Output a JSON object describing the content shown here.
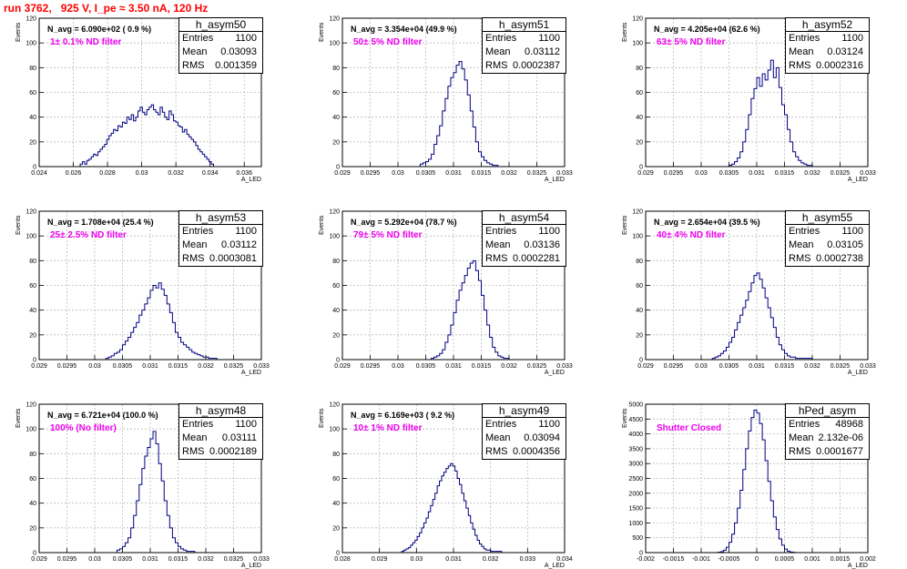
{
  "title": "run 3762,   925 V, I_pe ≈ 3.50 nA, 120 Hz",
  "ylabel": "Events",
  "xlabel": "A_LED",
  "colors": {
    "histogram": "#000080",
    "grid": "#bbbbbb",
    "title": "#ff0000",
    "filter_label": "#ee00ee"
  },
  "chart_data": [
    {
      "type": "bar",
      "name": "h_asym50",
      "entries": "1100",
      "mean": "0.03093",
      "rms": "0.001359",
      "navg": "N_avg = 6.090e+02 ( 0.9 %)",
      "filter": "1± 0.1% ND filter",
      "xlim": [
        0.024,
        0.037
      ],
      "ylim": [
        0,
        120
      ],
      "xticks": [
        0.024,
        0.026,
        0.028,
        0.03,
        0.032,
        0.034,
        0.036
      ],
      "xtick_labels": [
        "0.024",
        "0.026",
        "0.028",
        "0.03",
        "0.032",
        "0.034",
        "0.036"
      ],
      "yticks": [
        0,
        20,
        40,
        60,
        80,
        100,
        120
      ],
      "ytick_labels": [
        "0",
        "20",
        "40",
        "60",
        "80",
        "100",
        "120"
      ],
      "bin_edges": [
        0.0264,
        0.0342
      ],
      "counts": [
        2,
        4,
        2,
        5,
        6,
        8,
        10,
        9,
        12,
        14,
        16,
        18,
        22,
        25,
        27,
        30,
        29,
        33,
        32,
        36,
        35,
        40,
        38,
        42,
        37,
        40,
        45,
        48,
        44,
        42,
        46,
        48,
        50,
        46,
        44,
        42,
        48,
        44,
        40,
        38,
        45,
        42,
        37,
        36,
        33,
        32,
        28,
        30,
        26,
        24,
        22,
        20,
        17,
        14,
        12,
        10,
        8,
        6,
        4,
        2
      ]
    },
    {
      "type": "bar",
      "name": "h_asym51",
      "entries": "1100",
      "mean": "0.03112",
      "rms": "0.0002387",
      "navg": "N_avg = 3.354e+04 (49.9 %)",
      "filter": "50± 5% ND filter",
      "xlim": [
        0.029,
        0.033
      ],
      "ylim": [
        0,
        120
      ],
      "xticks": [
        0.029,
        0.0295,
        0.03,
        0.0305,
        0.031,
        0.0315,
        0.032,
        0.0325,
        0.033
      ],
      "xtick_labels": [
        "0.029",
        "0.0295",
        "0.03",
        "0.0305",
        "0.031",
        "0.0315",
        "0.032",
        "0.0325",
        "0.033"
      ],
      "yticks": [
        0,
        20,
        40,
        60,
        80,
        100,
        120
      ],
      "ytick_labels": [
        "0",
        "20",
        "40",
        "60",
        "80",
        "100",
        "120"
      ],
      "bin_edges": [
        0.0304,
        0.0318
      ],
      "counts": [
        2,
        3,
        4,
        6,
        10,
        18,
        25,
        33,
        45,
        55,
        65,
        72,
        76,
        82,
        85,
        79,
        70,
        58,
        45,
        32,
        20,
        12,
        8,
        5,
        3,
        2,
        1,
        1
      ]
    },
    {
      "type": "bar",
      "name": "h_asym52",
      "entries": "1100",
      "mean": "0.03124",
      "rms": "0.0002316",
      "navg": "N_avg = 4.205e+04 (62.6 %)",
      "filter": "63± 5% ND filter",
      "xlim": [
        0.029,
        0.033
      ],
      "ylim": [
        0,
        120
      ],
      "xticks": [
        0.029,
        0.0295,
        0.03,
        0.0305,
        0.031,
        0.0315,
        0.032,
        0.0325,
        0.033
      ],
      "xtick_labels": [
        "0.029",
        "0.0295",
        "0.03",
        "0.0305",
        "0.031",
        "0.0315",
        "0.032",
        "0.0325",
        "0.033"
      ],
      "yticks": [
        0,
        20,
        40,
        60,
        80,
        100,
        120
      ],
      "ytick_labels": [
        "0",
        "20",
        "40",
        "60",
        "80",
        "100",
        "120"
      ],
      "bin_edges": [
        0.0305,
        0.032
      ],
      "counts": [
        1,
        2,
        4,
        7,
        12,
        20,
        30,
        42,
        55,
        63,
        72,
        65,
        75,
        70,
        78,
        86,
        72,
        80,
        64,
        50,
        42,
        30,
        20,
        12,
        8,
        5,
        3,
        2,
        1,
        1
      ]
    },
    {
      "type": "bar",
      "name": "h_asym53",
      "entries": "1100",
      "mean": "0.03112",
      "rms": "0.0003081",
      "navg": "N_avg = 1.708e+04 (25.4 %)",
      "filter": "25± 2.5% ND filter",
      "xlim": [
        0.029,
        0.033
      ],
      "ylim": [
        0,
        120
      ],
      "xticks": [
        0.029,
        0.0295,
        0.03,
        0.0305,
        0.031,
        0.0315,
        0.032,
        0.0325,
        0.033
      ],
      "xtick_labels": [
        "0.029",
        "0.0295",
        "0.03",
        "0.0305",
        "0.031",
        "0.0315",
        "0.032",
        "0.0325",
        "0.033"
      ],
      "yticks": [
        0,
        20,
        40,
        60,
        80,
        100,
        120
      ],
      "ytick_labels": [
        "0",
        "20",
        "40",
        "60",
        "80",
        "100",
        "120"
      ],
      "bin_edges": [
        0.0302,
        0.0322
      ],
      "counts": [
        1,
        2,
        3,
        5,
        6,
        8,
        12,
        15,
        18,
        22,
        26,
        30,
        36,
        40,
        45,
        50,
        56,
        60,
        58,
        62,
        57,
        52,
        45,
        38,
        30,
        22,
        18,
        14,
        12,
        10,
        8,
        6,
        5,
        4,
        3,
        2,
        2,
        1,
        1,
        1
      ]
    },
    {
      "type": "bar",
      "name": "h_asym54",
      "entries": "1100",
      "mean": "0.03136",
      "rms": "0.0002281",
      "navg": "N_avg = 5.292e+04 (78.7 %)",
      "filter": "79± 5% ND filter",
      "xlim": [
        0.029,
        0.033
      ],
      "ylim": [
        0,
        120
      ],
      "xticks": [
        0.029,
        0.0295,
        0.03,
        0.0305,
        0.031,
        0.0315,
        0.032,
        0.0325,
        0.033
      ],
      "xtick_labels": [
        "0.029",
        "0.0295",
        "0.03",
        "0.0305",
        "0.031",
        "0.0315",
        "0.032",
        "0.0325",
        "0.033"
      ],
      "yticks": [
        0,
        20,
        40,
        60,
        80,
        100,
        120
      ],
      "ytick_labels": [
        "0",
        "20",
        "40",
        "60",
        "80",
        "100",
        "120"
      ],
      "bin_edges": [
        0.0306,
        0.032
      ],
      "counts": [
        1,
        2,
        3,
        5,
        8,
        14,
        20,
        28,
        38,
        48,
        56,
        62,
        68,
        74,
        78,
        80,
        72,
        64,
        52,
        40,
        28,
        18,
        10,
        6,
        3,
        2,
        1,
        1
      ]
    },
    {
      "type": "bar",
      "name": "h_asym55",
      "entries": "1100",
      "mean": "0.03105",
      "rms": "0.0002738",
      "navg": "N_avg = 2.654e+04 (39.5 %)",
      "filter": "40± 4% ND filter",
      "xlim": [
        0.029,
        0.033
      ],
      "ylim": [
        0,
        120
      ],
      "xticks": [
        0.029,
        0.0295,
        0.03,
        0.0305,
        0.031,
        0.0315,
        0.032,
        0.0325,
        0.033
      ],
      "xtick_labels": [
        "0.029",
        "0.0295",
        "0.03",
        "0.0305",
        "0.031",
        "0.0315",
        "0.032",
        "0.0325",
        "0.033"
      ],
      "yticks": [
        0,
        20,
        40,
        60,
        80,
        100,
        120
      ],
      "ytick_labels": [
        "0",
        "20",
        "40",
        "60",
        "80",
        "100",
        "120"
      ],
      "bin_edges": [
        0.0302,
        0.032
      ],
      "counts": [
        1,
        2,
        3,
        5,
        7,
        10,
        14,
        18,
        24,
        30,
        36,
        42,
        48,
        55,
        62,
        68,
        70,
        65,
        58,
        50,
        42,
        34,
        26,
        18,
        12,
        8,
        5,
        3,
        2,
        2,
        1,
        1,
        1,
        1,
        1,
        1
      ]
    },
    {
      "type": "bar",
      "name": "h_asym48",
      "entries": "1100",
      "mean": "0.03111",
      "rms": "0.0002189",
      "navg": "N_avg = 6.721e+04 (100.0 %)",
      "filter": "100% (No filter)",
      "xlim": [
        0.029,
        0.033
      ],
      "ylim": [
        0,
        120
      ],
      "xticks": [
        0.029,
        0.0295,
        0.03,
        0.0305,
        0.031,
        0.0315,
        0.032,
        0.0325,
        0.033
      ],
      "xtick_labels": [
        "0.029",
        "0.0295",
        "0.03",
        "0.0305",
        "0.031",
        "0.0315",
        "0.032",
        "0.0325",
        "0.033"
      ],
      "yticks": [
        0,
        20,
        40,
        60,
        80,
        100,
        120
      ],
      "ytick_labels": [
        "0",
        "20",
        "40",
        "60",
        "80",
        "100",
        "120"
      ],
      "bin_edges": [
        0.0304,
        0.0318
      ],
      "counts": [
        2,
        3,
        5,
        8,
        12,
        20,
        30,
        42,
        55,
        68,
        78,
        85,
        92,
        98,
        88,
        72,
        58,
        42,
        30,
        20,
        12,
        8,
        5,
        3,
        2,
        1,
        1,
        1
      ]
    },
    {
      "type": "bar",
      "name": "h_asym49",
      "entries": "1100",
      "mean": "0.03094",
      "rms": "0.0004356",
      "navg": "N_avg = 6.169e+03 ( 9.2 %)",
      "filter": "10± 1% ND filter",
      "xlim": [
        0.028,
        0.034
      ],
      "ylim": [
        0,
        120
      ],
      "xticks": [
        0.028,
        0.029,
        0.03,
        0.031,
        0.032,
        0.033,
        0.034
      ],
      "xtick_labels": [
        "0.028",
        "0.029",
        "0.03",
        "0.031",
        "0.032",
        "0.033",
        "0.034"
      ],
      "yticks": [
        0,
        20,
        40,
        60,
        80,
        100,
        120
      ],
      "ytick_labels": [
        "0",
        "20",
        "40",
        "60",
        "80",
        "100",
        "120"
      ],
      "bin_edges": [
        0.0296,
        0.0323
      ],
      "counts": [
        1,
        2,
        3,
        4,
        6,
        8,
        10,
        13,
        16,
        20,
        24,
        28,
        33,
        38,
        43,
        48,
        54,
        58,
        62,
        65,
        68,
        70,
        72,
        70,
        66,
        60,
        55,
        48,
        42,
        36,
        30,
        24,
        19,
        14,
        10,
        7,
        5,
        3,
        2,
        2,
        1,
        1,
        1,
        1,
        1
      ]
    },
    {
      "type": "bar",
      "name": "hPed_asym",
      "entries": "48968",
      "mean": "2.132e-06",
      "rms": "0.0001677",
      "navg": "",
      "filter": "Shutter Closed",
      "xlim": [
        -0.002,
        0.002
      ],
      "ylim": [
        0,
        5000
      ],
      "xticks": [
        -0.002,
        -0.0015,
        -0.001,
        -0.0005,
        0,
        0.0005,
        0.001,
        0.0015,
        0.002
      ],
      "xtick_labels": [
        "-0.002",
        "-0.0015",
        "-0.001",
        "-0.0005",
        "0",
        "0.0005",
        "0.001",
        "0.0015",
        "0.002"
      ],
      "yticks": [
        0,
        500,
        1000,
        1500,
        2000,
        2500,
        3000,
        3500,
        4000,
        4500,
        5000
      ],
      "ytick_labels": [
        "0",
        "500",
        "1000",
        "1500",
        "2000",
        "2500",
        "3000",
        "3500",
        "4000",
        "4500",
        "5000"
      ],
      "bin_edges": [
        -0.0007,
        0.0007
      ],
      "counts": [
        10,
        30,
        80,
        180,
        350,
        620,
        1000,
        1500,
        2100,
        2800,
        3500,
        4100,
        4550,
        4800,
        4700,
        4350,
        3800,
        3100,
        2400,
        1750,
        1200,
        780,
        460,
        250,
        120,
        50,
        20,
        8
      ]
    }
  ]
}
